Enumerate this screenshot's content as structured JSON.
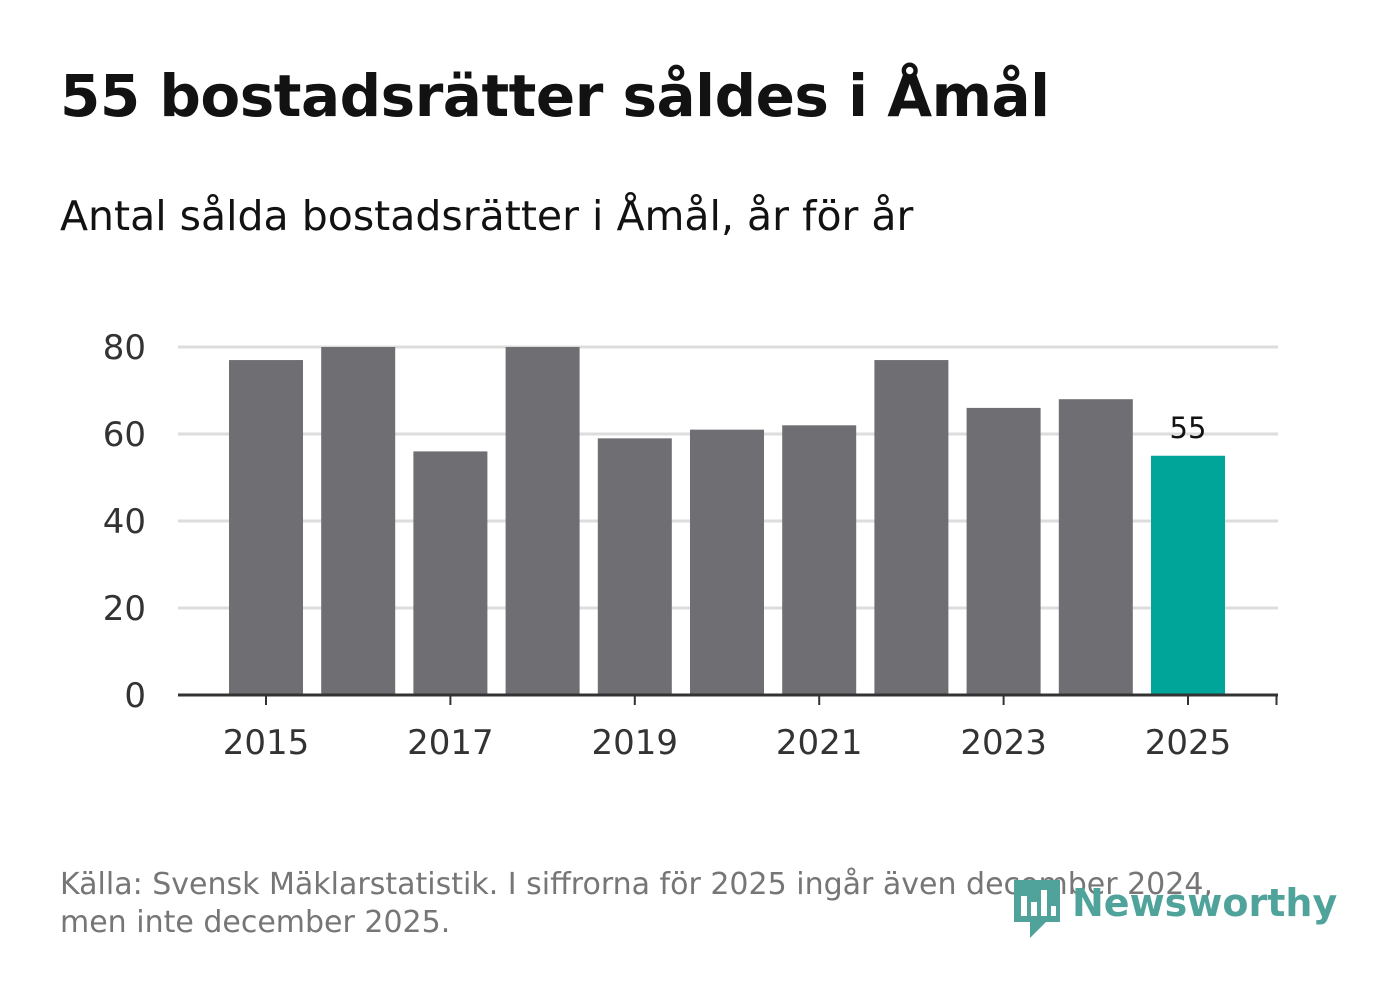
{
  "title": "55 bostadsrätter såldes i Åmål",
  "subtitle": "Antal sålda bostadsrätter i Åmål, år för år",
  "source": {
    "line1": "Källa: Svensk Mäklarstatistik. I siffrorna för 2025 ingår även december 2024,",
    "line2": "men inte december 2025."
  },
  "logo": {
    "text": "Newsworthy",
    "icon": "newsworthy-logo-icon",
    "color": "#4fa39b"
  },
  "colors": {
    "bar": "#6f6e73",
    "highlight": "#00a59a",
    "grid": "#dddddd",
    "axis": "#333333"
  },
  "chart_data": {
    "type": "bar",
    "title": "55 bostadsrätter såldes i Åmål",
    "subtitle": "Antal sålda bostadsrätter i Åmål, år för år",
    "xlabel": "",
    "ylabel": "",
    "categories": [
      "2015",
      "2016",
      "2017",
      "2018",
      "2019",
      "2020",
      "2021",
      "2022",
      "2023",
      "2024",
      "2025"
    ],
    "values": [
      77,
      80,
      56,
      80,
      59,
      61,
      62,
      77,
      66,
      68,
      55
    ],
    "highlight_index": 10,
    "data_labels": [
      {
        "index": 10,
        "text": "55"
      }
    ],
    "x_tick_labels": [
      "2015",
      "2017",
      "2019",
      "2021",
      "2023",
      "2025"
    ],
    "y_ticks": [
      0,
      20,
      40,
      60,
      80
    ],
    "ylim": [
      0,
      80
    ],
    "grid": true
  }
}
